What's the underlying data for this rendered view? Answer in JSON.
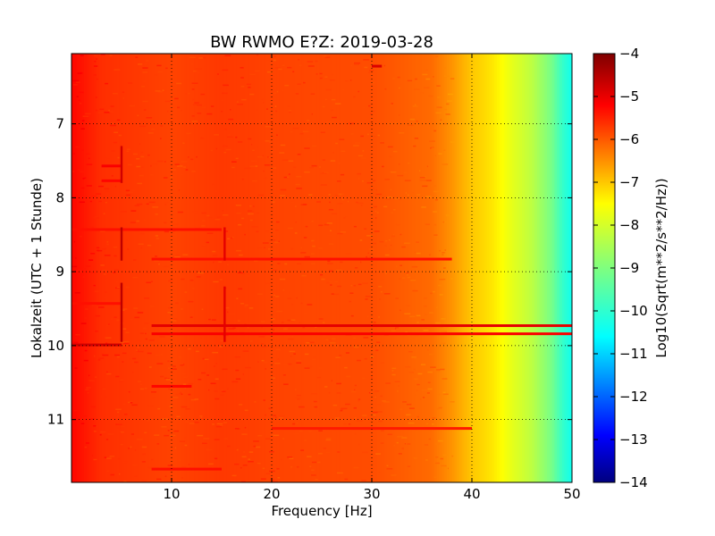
{
  "chart_data": {
    "type": "heatmap",
    "title": "BW RWMO E?Z: 2019-03-28",
    "xlabel": "Frequency [Hz]",
    "ylabel": "Lokalzeit (UTC + 1 Stunde)",
    "xlim": [
      0,
      50
    ],
    "ylim": [
      11.85,
      6.05
    ],
    "y_inverted": true,
    "grid": true,
    "colormap": "jet",
    "x_ticks": [
      {
        "value": 10,
        "label": "10"
      },
      {
        "value": 20,
        "label": "20"
      },
      {
        "value": 30,
        "label": "30"
      },
      {
        "value": 40,
        "label": "40"
      },
      {
        "value": 50,
        "label": "50"
      }
    ],
    "y_ticks": [
      {
        "value": 7,
        "label": "7"
      },
      {
        "value": 8,
        "label": "8"
      },
      {
        "value": 9,
        "label": "9"
      },
      {
        "value": 10,
        "label": "10"
      },
      {
        "value": 11,
        "label": "11"
      }
    ],
    "colorbar": {
      "label": "Log10(Sqrt(m**2/s**2/Hz))",
      "range": [
        -14,
        -4
      ],
      "ticks": [
        {
          "value": -4,
          "label": "−4"
        },
        {
          "value": -5,
          "label": "−5"
        },
        {
          "value": -6,
          "label": "−6"
        },
        {
          "value": -7,
          "label": "−7"
        },
        {
          "value": -8,
          "label": "−8"
        },
        {
          "value": -9,
          "label": "−9"
        },
        {
          "value": -10,
          "label": "−10"
        },
        {
          "value": -11,
          "label": "−11"
        },
        {
          "value": -12,
          "label": "−12"
        },
        {
          "value": -13,
          "label": "−13"
        },
        {
          "value": -14,
          "label": "−14"
        }
      ]
    },
    "spectrum_profile": [
      {
        "freq": 0,
        "value": -5.3
      },
      {
        "freq": 3,
        "value": -5.7
      },
      {
        "freq": 10,
        "value": -5.9
      },
      {
        "freq": 15,
        "value": -5.8
      },
      {
        "freq": 20,
        "value": -5.9
      },
      {
        "freq": 30,
        "value": -6.0
      },
      {
        "freq": 36,
        "value": -6.3
      },
      {
        "freq": 38,
        "value": -6.7
      },
      {
        "freq": 40,
        "value": -7.2
      },
      {
        "freq": 42,
        "value": -7.5
      },
      {
        "freq": 44,
        "value": -8.0
      },
      {
        "freq": 46,
        "value": -8.4
      },
      {
        "freq": 48,
        "value": -9.1
      },
      {
        "freq": 49,
        "value": -9.7
      },
      {
        "freq": 50,
        "value": -10.1
      }
    ],
    "horizontal_features": [
      {
        "time": 8.83,
        "f_start": 8,
        "f_end": 38,
        "value": -5.4
      },
      {
        "time": 9.73,
        "f_start": 8,
        "f_end": 50,
        "value": -5.0
      },
      {
        "time": 9.84,
        "f_start": 8,
        "f_end": 50,
        "value": -5.2
      },
      {
        "time": 9.99,
        "f_start": 0,
        "f_end": 5,
        "value": -4.8
      },
      {
        "time": 7.57,
        "f_start": 3,
        "f_end": 5,
        "value": -5.2
      },
      {
        "time": 7.77,
        "f_start": 3,
        "f_end": 5,
        "value": -5.3
      },
      {
        "time": 9.43,
        "f_start": 0,
        "f_end": 5,
        "value": -5.4
      },
      {
        "time": 8.43,
        "f_start": 0,
        "f_end": 15,
        "value": -5.4
      },
      {
        "time": 6.22,
        "f_start": 30,
        "f_end": 31,
        "value": -4.9
      },
      {
        "time": 10.55,
        "f_start": 8,
        "f_end": 12,
        "value": -5.3
      },
      {
        "time": 11.12,
        "f_start": 20,
        "f_end": 40,
        "value": -5.5
      },
      {
        "time": 11.67,
        "f_start": 8,
        "f_end": 15,
        "value": -5.4
      }
    ],
    "vertical_features": [
      {
        "freq": 5.0,
        "t_start": 8.4,
        "t_end": 8.85,
        "value": -4.6
      },
      {
        "freq": 5.0,
        "t_start": 9.15,
        "t_end": 9.95,
        "value": -4.6
      },
      {
        "freq": 5.0,
        "t_start": 7.3,
        "t_end": 7.8,
        "value": -4.8
      },
      {
        "freq": 15.3,
        "t_start": 8.4,
        "t_end": 8.85,
        "value": -5.0
      },
      {
        "freq": 15.3,
        "t_start": 9.2,
        "t_end": 9.95,
        "value": -5.0
      }
    ]
  }
}
